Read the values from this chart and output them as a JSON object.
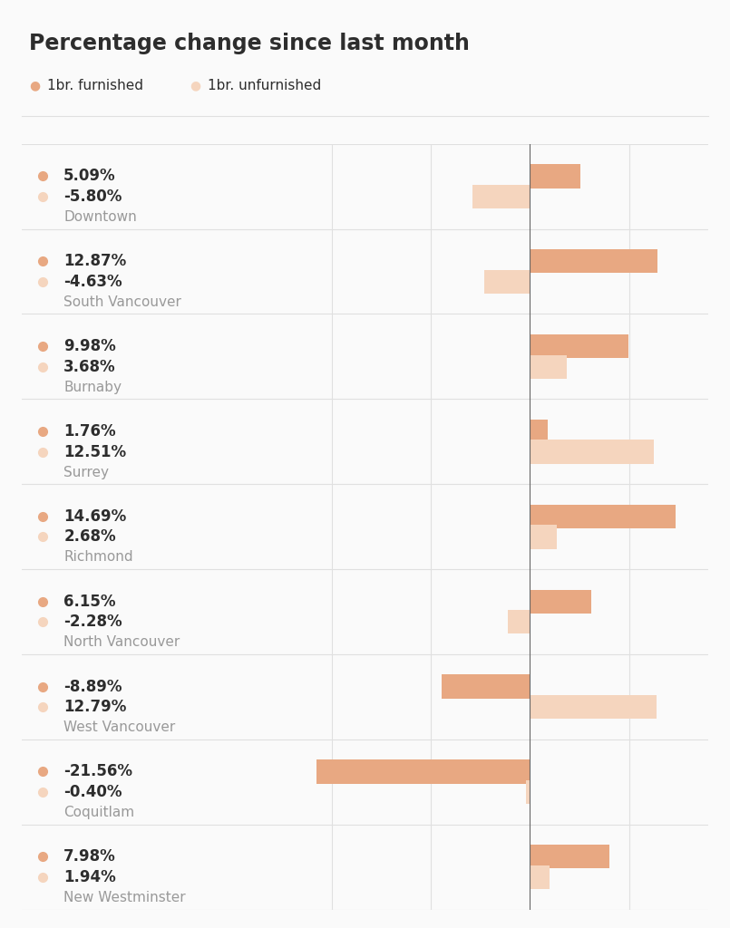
{
  "title": "Percentage change since last month",
  "legend": [
    "1br. furnished",
    "1br. unfurnished"
  ],
  "cities": [
    "Downtown",
    "South Vancouver",
    "Burnaby",
    "Surrey",
    "Richmond",
    "North Vancouver",
    "West Vancouver",
    "Coquitlam",
    "New Westminster"
  ],
  "furnished": [
    5.09,
    12.87,
    9.98,
    1.76,
    14.69,
    6.15,
    -8.89,
    -21.56,
    7.98
  ],
  "unfurnished": [
    -5.8,
    -4.63,
    3.68,
    12.51,
    2.68,
    -2.28,
    12.79,
    -0.4,
    1.94
  ],
  "furnished_color": "#e8a882",
  "unfurnished_color": "#f5d5be",
  "bar_height": 0.28,
  "background_color": "#fafafa",
  "grid_color": "#e0e0e0",
  "title_color": "#2d2d2d",
  "label_color": "#2d2d2d",
  "city_color": "#999999",
  "header_bg": "#f0f0f0",
  "xlim": [
    -25,
    18
  ],
  "title_fontsize": 17,
  "pct_fontsize": 12,
  "city_fontsize": 11,
  "legend_fontsize": 11
}
